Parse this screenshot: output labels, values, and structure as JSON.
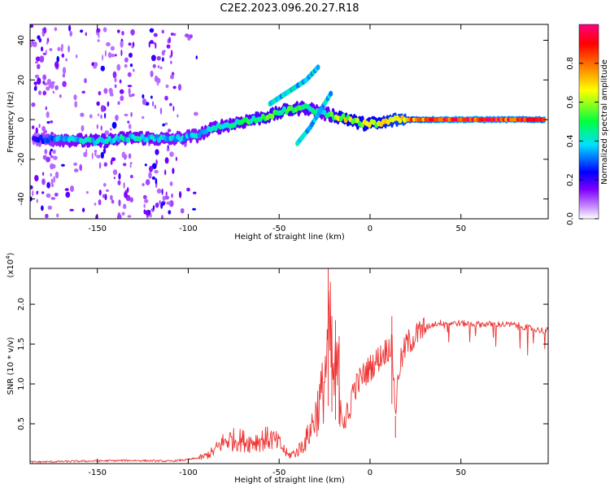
{
  "title": "C2E2.2023.096.20.27.R18",
  "chart_data": [
    {
      "type": "heatmap",
      "name": "spectrogram",
      "xlabel": "Height of straight line (km)",
      "ylabel": "Frequency (Hz)",
      "xlim": [
        -187,
        98
      ],
      "ylim": [
        -50,
        48
      ],
      "xticks": [
        -150,
        -100,
        -50,
        0,
        50
      ],
      "xtick_labels": [
        "-150",
        "-100",
        "-50",
        "0",
        "50"
      ],
      "yticks": [
        -40,
        -20,
        0,
        20,
        40
      ],
      "ytick_labels": [
        "-40",
        "-20",
        "0",
        "20",
        "40"
      ],
      "colorbar": {
        "label": "Normalized spectral amplitude",
        "range": [
          0,
          1
        ],
        "ticks": [
          0.0,
          0.2,
          0.4,
          0.6,
          0.8
        ],
        "tick_labels": [
          "0.0",
          "0.2",
          "0.4",
          "0.6",
          "0.8"
        ],
        "colors": [
          "#ffffff",
          "#c080ff",
          "#8000ff",
          "#0000ff",
          "#00e0ff",
          "#00ff40",
          "#ffff00",
          "#ff8000",
          "#ff0000",
          "#ff0080"
        ]
      },
      "main_track": [
        {
          "x": -185,
          "y": -10,
          "amp": 0.25
        },
        {
          "x": -170,
          "y": -10,
          "amp": 0.4
        },
        {
          "x": -150,
          "y": -11,
          "amp": 0.45
        },
        {
          "x": -130,
          "y": -9,
          "amp": 0.45
        },
        {
          "x": -110,
          "y": -10,
          "amp": 0.4
        },
        {
          "x": -95,
          "y": -8,
          "amp": 0.4
        },
        {
          "x": -85,
          "y": -4,
          "amp": 0.45
        },
        {
          "x": -70,
          "y": -1,
          "amp": 0.5
        },
        {
          "x": -55,
          "y": 2,
          "amp": 0.55
        },
        {
          "x": -45,
          "y": 5,
          "amp": 0.55
        },
        {
          "x": -35,
          "y": 6,
          "amp": 0.5
        },
        {
          "x": -25,
          "y": 3,
          "amp": 0.45
        },
        {
          "x": -15,
          "y": 1,
          "amp": 0.7
        },
        {
          "x": -5,
          "y": -2,
          "amp": 0.65
        },
        {
          "x": 5,
          "y": -2,
          "amp": 0.7
        },
        {
          "x": 15,
          "y": 0,
          "amp": 0.8
        },
        {
          "x": 40,
          "y": 0,
          "amp": 0.95
        },
        {
          "x": 70,
          "y": 0,
          "amp": 0.95
        },
        {
          "x": 96,
          "y": 0,
          "amp": 0.9
        }
      ],
      "upper_branch": [
        {
          "x": -55,
          "y": 8
        },
        {
          "x": -45,
          "y": 14
        },
        {
          "x": -35,
          "y": 20
        },
        {
          "x": -28,
          "y": 27
        }
      ],
      "lower_branch": [
        {
          "x": -40,
          "y": -12
        },
        {
          "x": -33,
          "y": -4
        },
        {
          "x": -27,
          "y": 5
        },
        {
          "x": -21,
          "y": 14
        }
      ]
    },
    {
      "type": "line",
      "name": "snr",
      "xlabel": "Height of straight line (km)",
      "ylabel": "SNR (10 * v/v)",
      "multiplier_label": "(x10",
      "multiplier_exp": "4",
      "multiplier_close": ")",
      "xlim": [
        -187,
        98
      ],
      "ylim": [
        0,
        2.45
      ],
      "xticks": [
        -150,
        -100,
        -50,
        0,
        50
      ],
      "xtick_labels": [
        "-150",
        "-100",
        "-50",
        "0",
        "50"
      ],
      "yticks": [
        0.5,
        1.0,
        1.5,
        2.0
      ],
      "ytick_labels": [
        "0.5",
        "1.0",
        "1.5",
        "2.0"
      ],
      "color": "#ee3333",
      "series": [
        {
          "name": "SNR",
          "x": [
            -187,
            -160,
            -130,
            -110,
            -100,
            -92,
            -86,
            -82,
            -78,
            -72,
            -66,
            -60,
            -55,
            -50,
            -45,
            -40,
            -35,
            -30,
            -26,
            -24,
            -22,
            -20,
            -18,
            -16,
            -14,
            -12,
            -10,
            -7,
            -4,
            0,
            4,
            8,
            12,
            14,
            16,
            20,
            25,
            30,
            35,
            40,
            50,
            60,
            70,
            80,
            88,
            92,
            96
          ],
          "y": [
            0.02,
            0.03,
            0.04,
            0.03,
            0.05,
            0.08,
            0.15,
            0.25,
            0.3,
            0.3,
            0.27,
            0.3,
            0.32,
            0.25,
            0.1,
            0.15,
            0.3,
            0.6,
            0.9,
            1.3,
            1.6,
            1.0,
            1.2,
            0.8,
            0.6,
            0.5,
            0.9,
            1.0,
            1.1,
            1.2,
            1.3,
            1.4,
            1.5,
            0.65,
            1.2,
            1.5,
            1.6,
            1.7,
            1.75,
            1.77,
            1.76,
            1.75,
            1.75,
            1.74,
            1.7,
            1.68,
            1.67
          ],
          "spikes": [
            {
              "x": -23,
              "y": 2.45
            },
            {
              "x": -21,
              "y": 1.85
            },
            {
              "x": -19,
              "y": 1.8
            },
            {
              "x": -17,
              "y": 1.6
            },
            {
              "x": 12,
              "y": 1.85
            },
            {
              "x": 14,
              "y": 0.6
            }
          ]
        }
      ]
    }
  ]
}
